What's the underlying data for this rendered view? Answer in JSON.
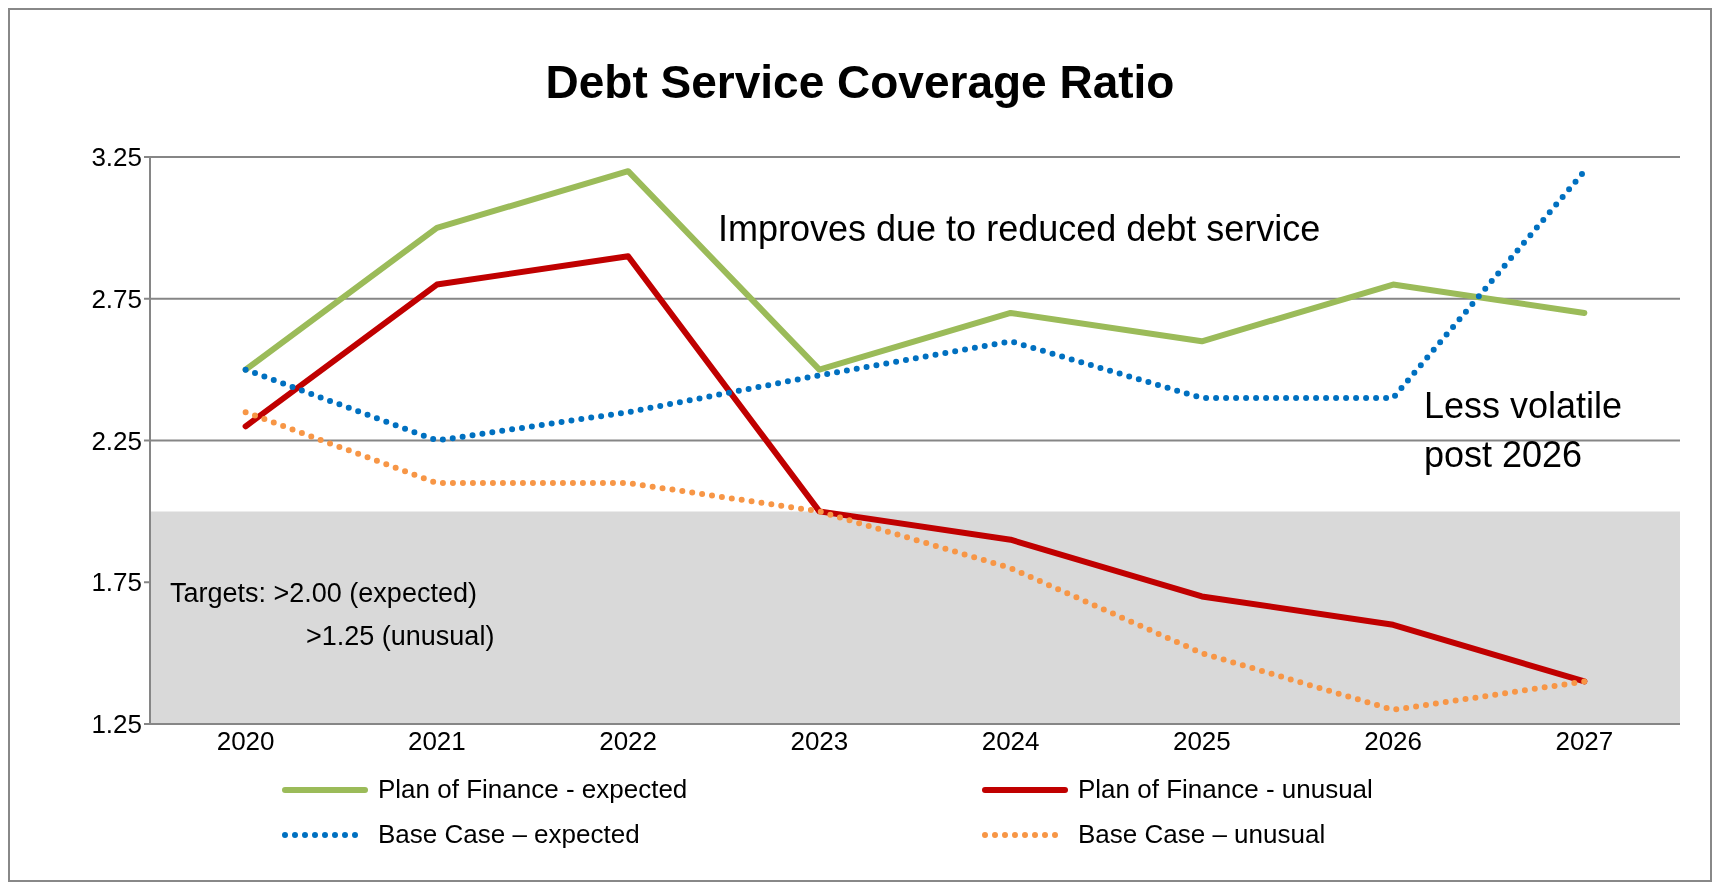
{
  "chart_data": {
    "type": "line",
    "title": "Debt Service Coverage Ratio",
    "categories": [
      "2020",
      "2021",
      "2022",
      "2023",
      "2024",
      "2025",
      "2026",
      "2027"
    ],
    "series": [
      {
        "name": "Plan of Finance - expected",
        "color": "#9bbb59",
        "line_style": "solid",
        "values": [
          2.5,
          3.0,
          3.2,
          2.5,
          2.7,
          2.6,
          2.8,
          2.7
        ]
      },
      {
        "name": "Plan of Finance - unusual",
        "color": "#c00000",
        "line_style": "solid",
        "values": [
          2.3,
          2.8,
          2.9,
          2.0,
          1.9,
          1.7,
          1.6,
          1.4
        ]
      },
      {
        "name": "Base Case – expected",
        "color": "#0070c0",
        "line_style": "dotted",
        "values": [
          2.5,
          2.25,
          2.35,
          2.48,
          2.6,
          2.4,
          2.4,
          3.2
        ]
      },
      {
        "name": "Base Case – unusual",
        "color": "#f79646",
        "line_style": "dotted",
        "values": [
          2.35,
          2.1,
          2.1,
          2.0,
          1.8,
          1.5,
          1.3,
          1.4
        ]
      }
    ],
    "ylim": [
      1.25,
      3.25
    ],
    "yticks": [
      1.25,
      1.75,
      2.25,
      2.75,
      3.25
    ],
    "grid": "y",
    "legend": "bottom",
    "marker": "none",
    "bands": [
      {
        "axis": "y",
        "from": 1.25,
        "to": 2.0,
        "color": "#d9d9d9"
      }
    ],
    "annotations": [
      "Improves due to reduced debt service",
      "Less volatile post 2026",
      "Targets: >2.00 (expected)",
      ">1.25 (unusual)"
    ]
  }
}
